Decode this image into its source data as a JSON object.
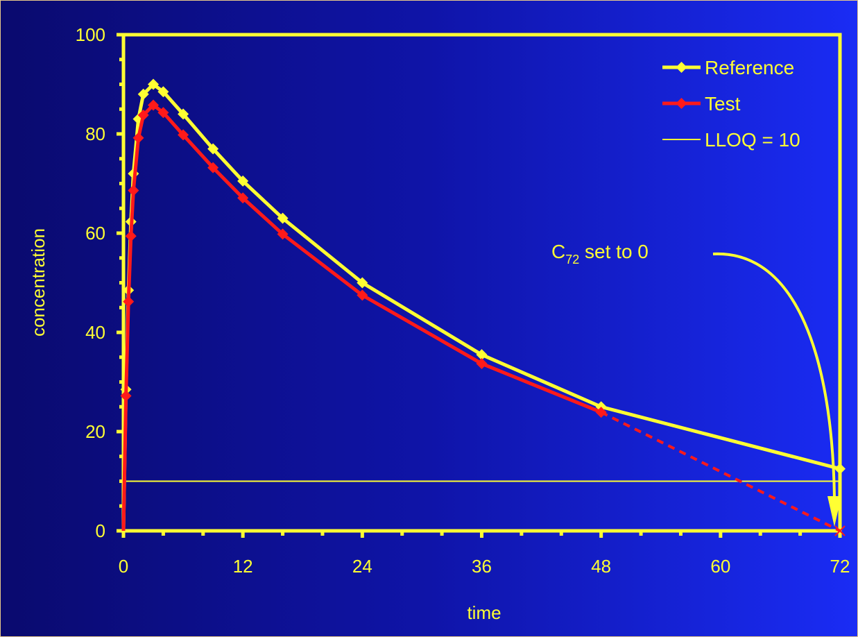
{
  "chart_data": {
    "type": "line",
    "xlabel": "time",
    "ylabel": "concentration",
    "xlim": [
      0,
      72
    ],
    "ylim": [
      0,
      100
    ],
    "x_ticks": [
      0,
      12,
      24,
      36,
      48,
      60,
      72
    ],
    "y_ticks": [
      0,
      20,
      40,
      60,
      80,
      100
    ],
    "grid": false,
    "legend_position": "top-right",
    "series": [
      {
        "name": "Reference",
        "color": "#ffff33",
        "marker": "diamond",
        "dashed_tail": false,
        "points": [
          [
            0,
            0
          ],
          [
            0.25,
            28.5
          ],
          [
            0.5,
            48.5
          ],
          [
            0.75,
            62.3
          ],
          [
            1,
            72
          ],
          [
            1.5,
            83
          ],
          [
            2,
            88
          ],
          [
            3,
            90
          ],
          [
            4,
            88.5
          ],
          [
            6,
            84
          ],
          [
            9,
            77
          ],
          [
            12,
            70.5
          ],
          [
            16,
            63
          ],
          [
            24,
            50
          ],
          [
            36,
            35.5
          ],
          [
            48,
            25
          ],
          [
            72,
            12.5
          ]
        ]
      },
      {
        "name": "Test",
        "color": "#ff1a1a",
        "marker": "diamond",
        "dashed_tail": true,
        "points": [
          [
            0,
            0
          ],
          [
            0.25,
            27.2
          ],
          [
            0.5,
            46.2
          ],
          [
            0.75,
            59.4
          ],
          [
            1,
            68.6
          ],
          [
            1.5,
            79.2
          ],
          [
            2,
            83.8
          ],
          [
            3,
            85.8
          ],
          [
            4,
            84.3
          ],
          [
            6,
            79.8
          ],
          [
            9,
            73.2
          ],
          [
            12,
            67.1
          ],
          [
            16,
            59.8
          ],
          [
            24,
            47.5
          ],
          [
            36,
            33.7
          ],
          [
            48,
            23.9
          ],
          [
            72,
            0
          ]
        ]
      }
    ],
    "reference_lines": [
      {
        "name": "LLOQ = 10",
        "y": 10,
        "color": "#ffff33"
      }
    ],
    "annotation": {
      "text_main": "C",
      "text_sub": "72",
      "text_rest": " set to 0",
      "target": [
        72,
        0
      ]
    }
  }
}
